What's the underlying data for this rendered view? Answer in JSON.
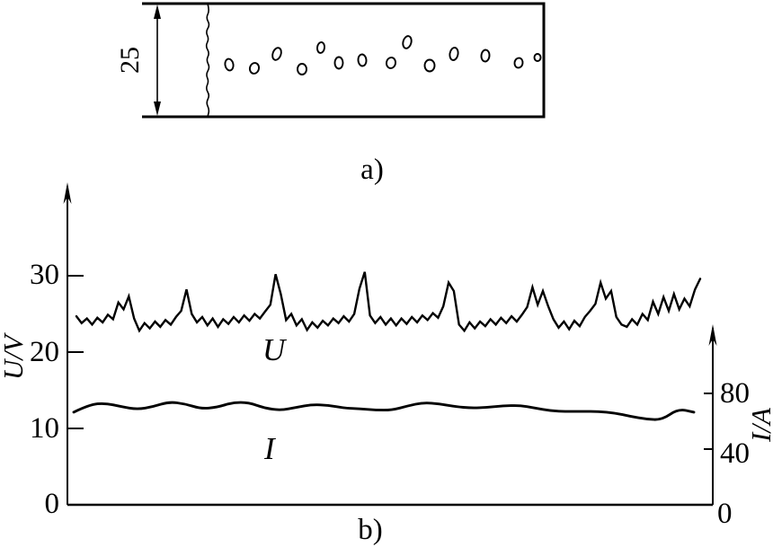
{
  "panel_a": {
    "label": "a)",
    "thickness_label": "25",
    "pores": [
      [
        255,
        72,
        4.5,
        6.5,
        -10
      ],
      [
        283,
        76,
        5,
        6,
        15
      ],
      [
        308,
        60,
        4.5,
        7,
        20
      ],
      [
        336,
        77,
        5,
        6,
        0
      ],
      [
        357,
        53,
        4,
        6,
        8
      ],
      [
        377,
        70,
        4.5,
        6.5,
        0
      ],
      [
        403,
        67,
        4.5,
        6.5,
        -5
      ],
      [
        435,
        70,
        5,
        6,
        10
      ],
      [
        453,
        47,
        4.5,
        7,
        15
      ],
      [
        478,
        73,
        5.5,
        6.5,
        0
      ],
      [
        505,
        60,
        4.5,
        7,
        10
      ],
      [
        540,
        62,
        4.5,
        6.5,
        5
      ],
      [
        577,
        70,
        4.5,
        5.5,
        10
      ],
      [
        598,
        64,
        3.5,
        4,
        0
      ]
    ]
  },
  "panel_b": {
    "label": "b)"
  },
  "chart_data": {
    "type": "line",
    "title": "",
    "legend": "inline-labels",
    "left_axis": {
      "label": "U/V",
      "ticks": [
        30,
        20,
        10
      ],
      "origin": "0",
      "range": [
        0,
        42
      ]
    },
    "right_axis": {
      "label": "I/A",
      "ticks": [
        80,
        40
      ],
      "origin": "0",
      "range": [
        0,
        130
      ]
    },
    "series": [
      {
        "name": "U",
        "axis": "left",
        "unit": "V",
        "values": [
          24.7,
          23.8,
          24.4,
          23.6,
          24.5,
          23.9,
          24.9,
          24.3,
          26.5,
          25.6,
          27.3,
          24.4,
          22.8,
          23.8,
          23.1,
          24.0,
          23.3,
          24.2,
          23.6,
          24.6,
          25.4,
          28.2,
          25.0,
          23.9,
          24.6,
          23.5,
          24.4,
          23.3,
          24.3,
          23.7,
          24.6,
          23.9,
          24.8,
          24.1,
          25.0,
          24.4,
          25.3,
          26.2,
          30.2,
          27.6,
          24.2,
          25.0,
          23.5,
          24.3,
          22.9,
          23.9,
          23.2,
          24.1,
          23.5,
          24.4,
          23.8,
          24.7,
          24.0,
          25.0,
          28.3,
          30.5,
          24.8,
          23.8,
          24.6,
          23.6,
          24.4,
          23.5,
          24.4,
          23.7,
          24.6,
          23.9,
          24.8,
          24.2,
          25.1,
          24.5,
          26.0,
          29.1,
          28.0,
          23.6,
          22.8,
          23.9,
          23.1,
          24.0,
          23.4,
          24.3,
          23.6,
          24.5,
          23.8,
          24.7,
          24.0,
          24.9,
          25.9,
          28.5,
          26.2,
          28.0,
          26.0,
          24.3,
          23.2,
          24.0,
          23.0,
          24.1,
          23.4,
          24.6,
          25.4,
          26.3,
          29.1,
          27.0,
          28.0,
          24.6,
          23.6,
          23.3,
          24.3,
          23.6,
          25.0,
          24.2,
          26.6,
          25.0,
          27.2,
          25.4,
          27.6,
          25.6,
          27.0,
          26.0,
          28.2,
          29.6
        ]
      },
      {
        "name": "I",
        "axis": "right",
        "unit": "A",
        "values": [
          66.5,
          72,
          73,
          70.5,
          68.5,
          70.5,
          74,
          72.5,
          69,
          70,
          73.5,
          73.5,
          69.5,
          67.8,
          70,
          72,
          71.5,
          69.5,
          69,
          68,
          68,
          71,
          73.5,
          72.5,
          70.5,
          69.5,
          70,
          71,
          71.5,
          69.5,
          67.5,
          67,
          67,
          67,
          66,
          63.5,
          61.5,
          61,
          69,
          66.5
        ]
      }
    ]
  }
}
